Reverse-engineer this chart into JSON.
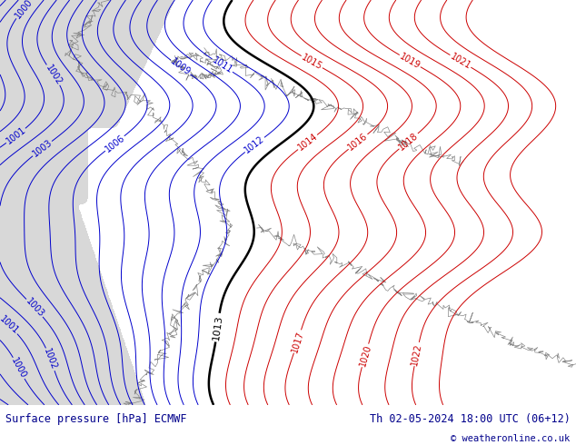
{
  "title_left": "Surface pressure [hPa] ECMWF",
  "title_right": "Th 02-05-2024 18:00 UTC (06+12)",
  "copyright": "© weatheronline.co.uk",
  "land_color": "#c8e8a0",
  "sea_color": "#d8d8d8",
  "bottom_text_color": "#00008b",
  "figsize": [
    6.34,
    4.9
  ],
  "dpi": 100,
  "blue_color": "#0000cc",
  "red_color": "#cc0000",
  "black_color": "#000000",
  "gray_color": "#909090",
  "coast_color": "#888888",
  "bottom_bar_color": "#ffffff"
}
